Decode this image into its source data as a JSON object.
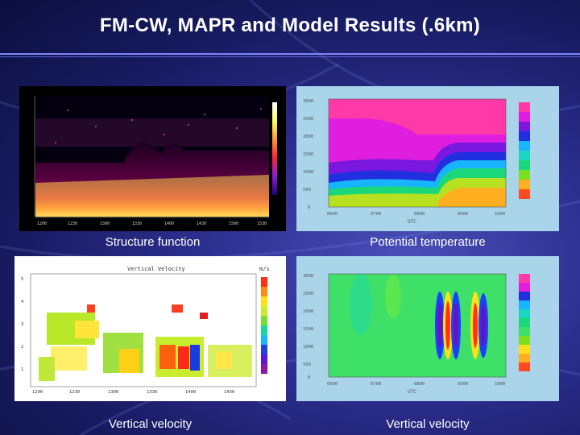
{
  "slide": {
    "title": "FM-CW, MAPR and Model Results (.6km)"
  },
  "panels": [
    {
      "id": "structure-function",
      "caption": "Structure function"
    },
    {
      "id": "potential-temperature",
      "caption": "Potential temperature"
    },
    {
      "id": "vertical-velocity-obs",
      "caption": "Vertical velocity",
      "plot_title": "Vertical Velocity",
      "units": "m/s"
    },
    {
      "id": "vertical-velocity-model",
      "caption": "Vertical velocity"
    }
  ],
  "model_axes": {
    "x_label": "UTC",
    "x_ticks": [
      "0600",
      "0700",
      "0800",
      "0900",
      "1000"
    ],
    "y_ticks": [
      "3000",
      "2500",
      "2000",
      "1500",
      "1000",
      "500",
      "0"
    ]
  },
  "colors": {
    "background": "#1c1f6b",
    "panel_bg": "#a9d4ea",
    "title": "#ffffff",
    "rule": "#7f86ff"
  }
}
